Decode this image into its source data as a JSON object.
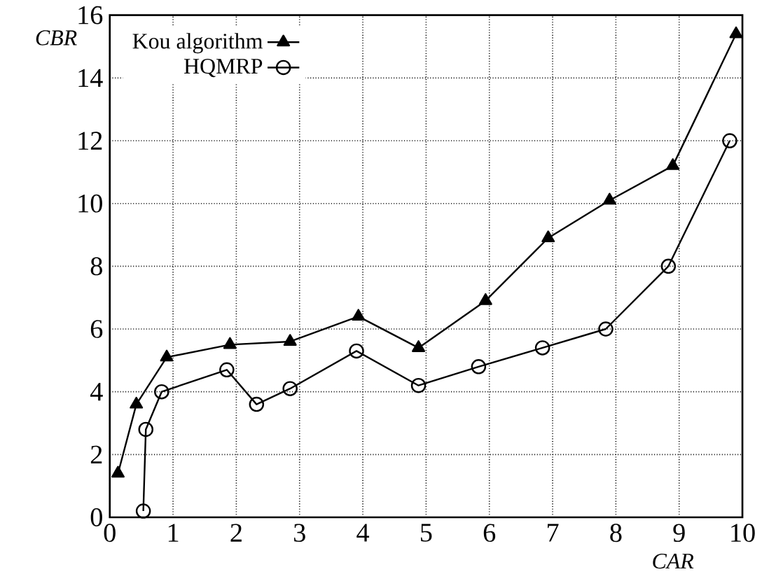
{
  "chart_data": {
    "type": "line",
    "xlabel": "CAR",
    "ylabel": "CBR",
    "xlim": [
      0,
      10
    ],
    "ylim": [
      0,
      16
    ],
    "xticks": [
      0,
      1,
      2,
      3,
      4,
      5,
      6,
      7,
      8,
      9,
      10
    ],
    "yticks": [
      0,
      2,
      4,
      6,
      8,
      10,
      12,
      14,
      16
    ],
    "grid": true,
    "legend": "top left",
    "line_style": "solid",
    "series": [
      {
        "name": "Kou algorithm",
        "color": "#000000",
        "marker": "triangle",
        "x": [
          0.13,
          0.42,
          0.9,
          1.9,
          2.85,
          3.93,
          4.88,
          5.94,
          6.93,
          7.9,
          8.9,
          9.9
        ],
        "values": [
          1.4,
          3.6,
          5.1,
          5.5,
          5.6,
          6.4,
          5.4,
          6.9,
          8.9,
          10.1,
          11.2,
          15.4
        ]
      },
      {
        "name": "HQMRP",
        "color": "#000000",
        "marker": "circle",
        "x": [
          0.53,
          0.57,
          0.82,
          1.85,
          2.32,
          2.85,
          3.9,
          4.88,
          5.83,
          6.84,
          7.84,
          8.83,
          9.8
        ],
        "values": [
          0.2,
          2.8,
          4.0,
          4.7,
          3.6,
          4.1,
          5.3,
          4.2,
          4.8,
          5.4,
          6.0,
          8.0,
          12.0
        ]
      }
    ]
  }
}
